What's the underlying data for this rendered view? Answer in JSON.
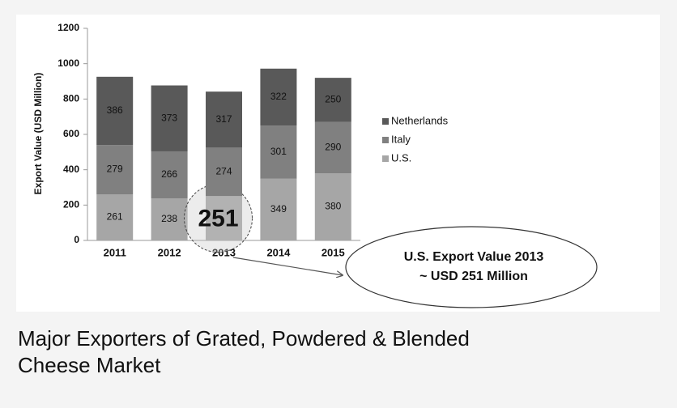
{
  "chart_data": {
    "type": "stacked-bar",
    "ylabel": "Export Value (USD Million)",
    "categories": [
      "2011",
      "2012",
      "2013",
      "2014",
      "2015"
    ],
    "series": [
      {
        "name": "U.S.",
        "color": "#a6a6a6",
        "values": [
          261,
          238,
          251,
          349,
          380
        ]
      },
      {
        "name": "Italy",
        "color": "#808080",
        "values": [
          279,
          266,
          274,
          301,
          290
        ]
      },
      {
        "name": "Netherlands",
        "color": "#595959",
        "values": [
          386,
          373,
          317,
          322,
          250
        ]
      }
    ],
    "ylim": [
      0,
      1200
    ],
    "yticks": [
      0,
      200,
      400,
      600,
      800,
      1000,
      1200
    ],
    "grid": false,
    "legend": "right",
    "highlight": {
      "series": "U.S.",
      "category": "2013"
    },
    "annotation": [
      "U.S. Export Value 2013",
      "~ USD 251 Million"
    ]
  },
  "caption": "Major Exporters of Grated, Powdered & Blended Cheese Market"
}
